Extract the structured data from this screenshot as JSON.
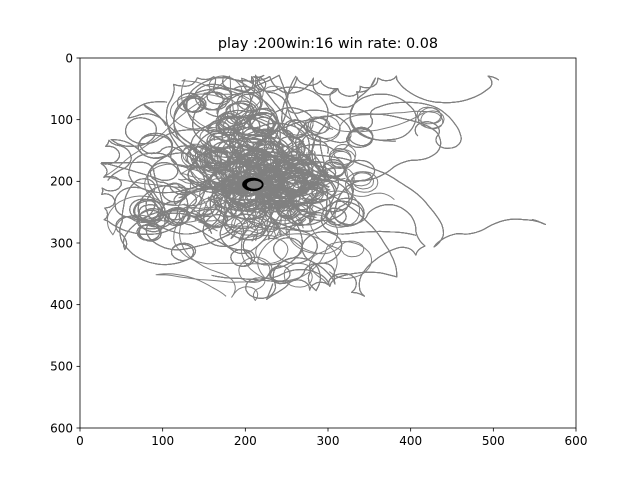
{
  "chart_data": {
    "type": "line",
    "title": "play :200win:16 win rate: 0.08",
    "xlabel": "",
    "ylabel": "",
    "xlim": [
      0,
      600
    ],
    "ylim": [
      600,
      0
    ],
    "y_inverted": true,
    "x_ticks": [
      "0",
      "100",
      "200",
      "300",
      "400",
      "500",
      "600"
    ],
    "y_ticks": [
      "0",
      "100",
      "200",
      "300",
      "400",
      "500",
      "600"
    ],
    "grid": false,
    "legend": "none",
    "colors": {
      "trajectories": "#808080",
      "highlight": "#000000",
      "axes": "#000000",
      "background": "#ffffff"
    },
    "plots_count": 200,
    "wins": 16,
    "win_rate": 0.08,
    "center_cluster": {
      "x": 210,
      "y": 205
    },
    "description": "Overlapping gray wandering trajectories radiating from about (210, 205); black loop at the center"
  }
}
